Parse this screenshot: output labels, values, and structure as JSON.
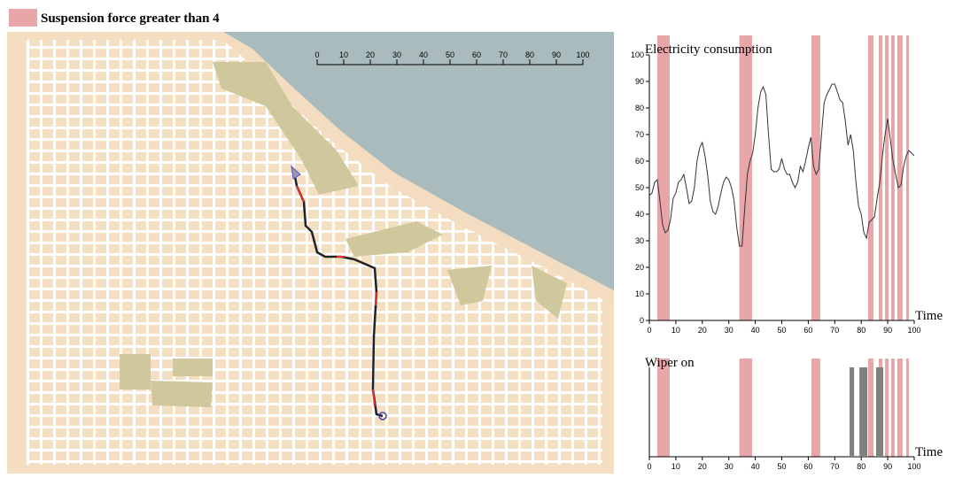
{
  "legend": {
    "label": "Suspension force greater than 4",
    "color": "#e8a6a8",
    "intervals": [
      [
        3,
        7.7
      ],
      [
        34,
        38.8
      ],
      [
        61.2,
        64.5
      ],
      [
        82.6,
        84.6
      ],
      [
        86.6,
        88
      ],
      [
        89,
        90.3
      ],
      [
        91.3,
        92.6
      ],
      [
        93.6,
        95.6
      ],
      [
        97,
        98
      ]
    ]
  },
  "map": {
    "scale_ticks": [
      0,
      10,
      20,
      30,
      40,
      50,
      60,
      70,
      80,
      90,
      100
    ]
  },
  "chart_data": [
    {
      "type": "line",
      "title": "Electricity consumption",
      "xlabel": "Time",
      "color": "#333333",
      "x": [
        0,
        1,
        2,
        3,
        4,
        5,
        6,
        7,
        8,
        9,
        10,
        11,
        12,
        13,
        14,
        15,
        16,
        17,
        18,
        19,
        20,
        21,
        22,
        23,
        24,
        25,
        26,
        27,
        28,
        29,
        30,
        31,
        32,
        33,
        34,
        35,
        36,
        37,
        38,
        39,
        40,
        41,
        42,
        43,
        44,
        45,
        46,
        47,
        48,
        49,
        50,
        51,
        52,
        53,
        54,
        55,
        56,
        57,
        58,
        59,
        60,
        61,
        62,
        63,
        64,
        65,
        66,
        67,
        68,
        69,
        70,
        71,
        72,
        73,
        74,
        75,
        76,
        77,
        78,
        79,
        80,
        81,
        82,
        83,
        84,
        85,
        86,
        87,
        88,
        89,
        90,
        91,
        92,
        93,
        94,
        95,
        96,
        97,
        98,
        99,
        100
      ],
      "values": [
        47,
        48,
        52,
        53,
        45,
        36,
        33,
        34,
        38,
        46,
        48,
        52,
        53,
        55,
        50,
        44,
        45,
        50,
        60,
        65,
        67,
        62,
        55,
        45,
        41,
        40,
        43,
        48,
        52,
        54,
        53,
        50,
        45,
        35,
        28,
        28,
        42,
        55,
        60,
        63,
        70,
        80,
        86,
        88,
        85,
        70,
        57,
        56,
        56,
        57,
        61,
        57,
        55,
        55,
        52,
        50,
        52,
        58,
        56,
        60,
        65,
        69,
        58,
        55,
        57,
        70,
        82,
        85,
        87,
        89,
        89,
        86,
        83,
        82,
        75,
        66,
        70,
        64,
        52,
        43,
        40,
        33,
        31,
        37,
        38,
        39,
        46,
        52,
        62,
        70,
        76,
        68,
        60,
        55,
        50,
        51,
        58,
        62,
        64,
        63,
        62
      ],
      "xlim": [
        0,
        100
      ],
      "ylim": [
        0,
        100
      ],
      "xticks": [
        0,
        10,
        20,
        30,
        40,
        50,
        60,
        70,
        80,
        90,
        100
      ],
      "yticks": [
        0,
        10,
        20,
        30,
        40,
        50,
        60,
        70,
        80,
        90,
        100
      ]
    },
    {
      "type": "timeline",
      "title": "Wiper on",
      "xlabel": "Time",
      "color": "#808080",
      "intervals": [
        [
          75.6,
          77.3
        ],
        [
          79.3,
          82.3
        ],
        [
          85.6,
          88.3
        ]
      ],
      "xlim": [
        0,
        100
      ],
      "xticks": [
        0,
        10,
        20,
        30,
        40,
        50,
        60,
        70,
        80,
        90,
        100
      ]
    }
  ]
}
